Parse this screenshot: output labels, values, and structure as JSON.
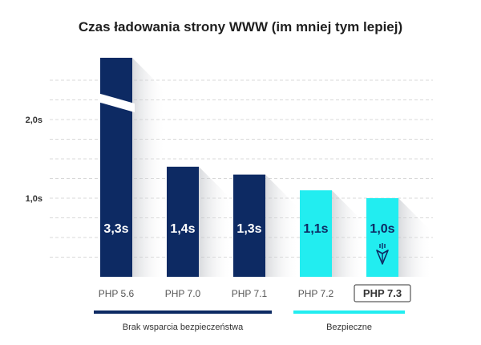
{
  "chart_data": {
    "type": "bar",
    "title": "Czas ładowania strony WWW (im mniej tym lepiej)",
    "categories": [
      "PHP 5.6",
      "PHP 7.0",
      "PHP 7.1",
      "PHP 7.2",
      "PHP 7.3"
    ],
    "values": [
      3.3,
      1.4,
      1.3,
      1.1,
      1.0
    ],
    "value_labels": [
      "3,3s",
      "1,4s",
      "1,3s",
      "1,1s",
      "1,0s"
    ],
    "y_ticks": [
      {
        "value": 1.0,
        "label": "1,0s"
      },
      {
        "value": 2.0,
        "label": "2,0s"
      }
    ],
    "ylim": [
      0,
      3.3
    ],
    "axis_break": true,
    "grid": true,
    "highlighted_category": "PHP 7.3",
    "groups": [
      {
        "label": "Brak wsparcia bezpieczeństwa",
        "categories": [
          "PHP 5.6",
          "PHP 7.0",
          "PHP 7.1"
        ],
        "color": "#0d2a63"
      },
      {
        "label": "Bezpieczne",
        "categories": [
          "PHP 7.2",
          "PHP 7.3"
        ],
        "color": "#22edf0"
      }
    ],
    "bar_colors": [
      "#0d2a63",
      "#0d2a63",
      "#0d2a63",
      "#22edf0",
      "#22edf0"
    ],
    "label_colors": [
      "#ffffff",
      "#ffffff",
      "#ffffff",
      "#0d2a63",
      "#0d2a63"
    ],
    "icon": "rocket-icon"
  }
}
